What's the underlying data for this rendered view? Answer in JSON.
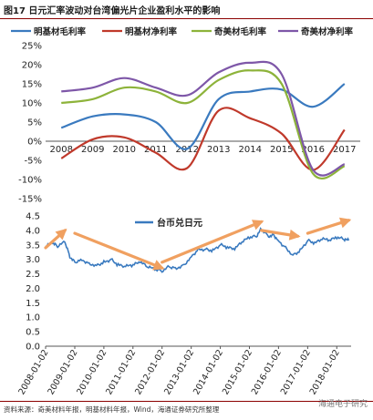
{
  "figure": {
    "title": "图17 日元汇率波动对台湾偏光片企业盈利水平的影响",
    "source": "资料来源：奇美材料年报，明基材料年报，Wind，海通证券研究所整理",
    "watermark": "海通电子研究"
  },
  "chart_data": [
    {
      "type": "line",
      "categories": [
        "2008",
        "2009",
        "2010",
        "2011",
        "2012",
        "2013",
        "2014",
        "2015",
        "2016",
        "2017"
      ],
      "ylim": [
        -15,
        25
      ],
      "yticks": [
        "25%",
        "20%",
        "15%",
        "10%",
        "5%",
        "0%",
        "-5%",
        "-10%",
        "-15%"
      ],
      "ytick_values": [
        25,
        20,
        15,
        10,
        5,
        0,
        -5,
        -10,
        -15
      ],
      "legend_position": "top",
      "series": [
        {
          "name": "明基材毛利率",
          "color": "#3a7abf",
          "values": [
            3.5,
            6.5,
            7.0,
            5.0,
            -2.0,
            11.0,
            13.0,
            13.5,
            9.0,
            15.0
          ]
        },
        {
          "name": "明基材净利率",
          "color": "#c0392b",
          "values": [
            -4.5,
            0.5,
            1.0,
            -3.0,
            -7.0,
            8.0,
            6.0,
            2.0,
            -7.5,
            3.0
          ]
        },
        {
          "name": "奇美材毛利率",
          "color": "#8db33a",
          "values": [
            10.0,
            11.0,
            14.0,
            13.0,
            10.0,
            16.0,
            18.5,
            15.0,
            -8.5,
            -6.5
          ]
        },
        {
          "name": "奇美材净利率",
          "color": "#7e57a8",
          "values": [
            13.0,
            14.0,
            16.5,
            14.0,
            12.0,
            18.0,
            20.5,
            17.5,
            -7.5,
            -6.0
          ]
        }
      ]
    },
    {
      "type": "line",
      "x": [
        "2008-01-02",
        "2009-01-02",
        "2010-01-02",
        "2011-01-02",
        "2012-01-02",
        "2013-01-02",
        "2014-01-02",
        "2015-01-02",
        "2016-01-02",
        "2017-01-02",
        "2018-01-02"
      ],
      "ylim": [
        0,
        4.5
      ],
      "yticks": [
        "4.5",
        "4.0",
        "3.5",
        "3.0",
        "2.5",
        "2.0",
        "1.5",
        "1.0",
        "0.5",
        "0.0"
      ],
      "ytick_values": [
        4.5,
        4.0,
        3.5,
        3.0,
        2.5,
        2.0,
        1.5,
        1.0,
        0.5,
        0.0
      ],
      "legend_position": "top-center",
      "series": [
        {
          "name": "台币兑日元",
          "color": "#3a7abf",
          "points": [
            [
              "2008-01-02",
              3.45
            ],
            [
              "2008-04-01",
              3.55
            ],
            [
              "2008-06-01",
              3.45
            ],
            [
              "2008-09-01",
              3.6
            ],
            [
              "2008-11-01",
              3.1
            ],
            [
              "2009-01-02",
              2.9
            ],
            [
              "2009-04-01",
              3.0
            ],
            [
              "2009-07-01",
              2.85
            ],
            [
              "2009-10-01",
              2.8
            ],
            [
              "2010-01-02",
              2.9
            ],
            [
              "2010-04-01",
              3.0
            ],
            [
              "2010-07-01",
              2.8
            ],
            [
              "2010-10-01",
              2.75
            ],
            [
              "2011-01-02",
              2.8
            ],
            [
              "2011-04-01",
              2.9
            ],
            [
              "2011-07-01",
              2.75
            ],
            [
              "2011-10-01",
              2.65
            ],
            [
              "2012-01-02",
              2.6
            ],
            [
              "2012-04-01",
              2.75
            ],
            [
              "2012-07-01",
              2.7
            ],
            [
              "2012-10-01",
              2.8
            ],
            [
              "2013-01-02",
              3.1
            ],
            [
              "2013-04-01",
              3.35
            ],
            [
              "2013-07-01",
              3.35
            ],
            [
              "2013-10-01",
              3.3
            ],
            [
              "2014-01-02",
              3.5
            ],
            [
              "2014-04-01",
              3.4
            ],
            [
              "2014-07-01",
              3.35
            ],
            [
              "2014-10-01",
              3.6
            ],
            [
              "2015-01-02",
              3.75
            ],
            [
              "2015-04-01",
              3.8
            ],
            [
              "2015-06-01",
              4.05
            ],
            [
              "2015-09-01",
              3.8
            ],
            [
              "2015-11-01",
              3.85
            ],
            [
              "2016-01-02",
              3.65
            ],
            [
              "2016-04-01",
              3.4
            ],
            [
              "2016-07-01",
              3.15
            ],
            [
              "2016-10-01",
              3.3
            ],
            [
              "2017-01-02",
              3.65
            ],
            [
              "2017-04-01",
              3.55
            ],
            [
              "2017-07-01",
              3.7
            ],
            [
              "2017-10-01",
              3.65
            ],
            [
              "2018-01-02",
              3.75
            ],
            [
              "2018-04-01",
              3.7
            ],
            [
              "2018-06-01",
              3.65
            ]
          ]
        }
      ],
      "annotations": {
        "trend_arrows": [
          {
            "from": [
              "2008-01-02",
              3.4
            ],
            "to": [
              "2008-09-01",
              4.0
            ]
          },
          {
            "from": [
              "2009-01-02",
              3.9
            ],
            "to": [
              "2012-01-02",
              2.7
            ]
          },
          {
            "from": [
              "2012-01-02",
              2.9
            ],
            "to": [
              "2015-06-01",
              4.3
            ]
          },
          {
            "from": [
              "2015-06-01",
              4.0
            ],
            "to": [
              "2016-09-01",
              3.8
            ]
          },
          {
            "from": [
              "2017-01-02",
              3.9
            ],
            "to": [
              "2018-06-01",
              4.35
            ]
          }
        ],
        "arrow_color": "#f0a060"
      }
    }
  ]
}
